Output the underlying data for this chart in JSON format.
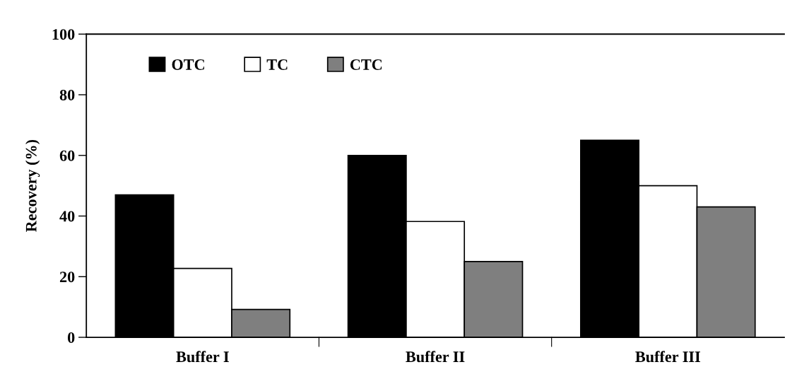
{
  "chart_data": {
    "type": "bar",
    "ylabel": "Recovery (%)",
    "categories": [
      "Buffer I",
      "Buffer II",
      "Buffer III"
    ],
    "series": [
      {
        "name": "OTC",
        "color": "#000000",
        "values": [
          47,
          60,
          65
        ]
      },
      {
        "name": "TC",
        "color": "#ffffff",
        "values": [
          22.7,
          38.2,
          50
        ]
      },
      {
        "name": "CTC",
        "color": "#7f7f7f",
        "values": [
          9.2,
          25,
          43
        ]
      }
    ],
    "ylim": [
      0,
      100
    ],
    "yticks": [
      0,
      20,
      40,
      60,
      80,
      100
    ],
    "grid": false,
    "legend": "top left"
  }
}
